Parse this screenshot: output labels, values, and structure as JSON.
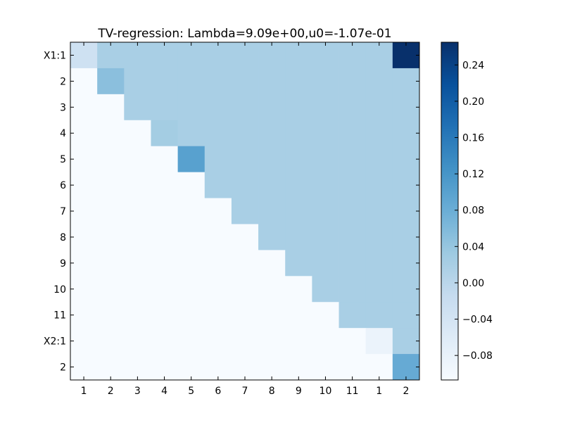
{
  "chart_data": {
    "type": "heatmap",
    "title": "TV-regression: Lambda=9.09e+00,u0=-1.07e-01",
    "x_tick_labels": [
      "1",
      "2",
      "3",
      "4",
      "5",
      "6",
      "7",
      "8",
      "9",
      "10",
      "11",
      "1",
      "2"
    ],
    "y_tick_labels": [
      "X1:1",
      "2",
      "3",
      "4",
      "5",
      "6",
      "7",
      "8",
      "9",
      "10",
      "11",
      "X2:1",
      "2"
    ],
    "values": [
      [
        -0.03,
        0.02,
        0.02,
        0.02,
        0.02,
        0.02,
        0.02,
        0.02,
        0.02,
        0.02,
        0.02,
        0.02,
        0.265
      ],
      [
        -0.107,
        0.05,
        0.02,
        0.02,
        0.02,
        0.02,
        0.02,
        0.02,
        0.02,
        0.02,
        0.02,
        0.02,
        0.02
      ],
      [
        -0.107,
        -0.107,
        0.02,
        0.02,
        0.02,
        0.02,
        0.02,
        0.02,
        0.02,
        0.02,
        0.02,
        0.02,
        0.02
      ],
      [
        -0.107,
        -0.107,
        -0.107,
        0.025,
        0.02,
        0.02,
        0.02,
        0.02,
        0.02,
        0.02,
        0.02,
        0.02,
        0.02
      ],
      [
        -0.107,
        -0.107,
        -0.107,
        -0.107,
        0.1,
        0.02,
        0.02,
        0.02,
        0.02,
        0.02,
        0.02,
        0.02,
        0.02
      ],
      [
        -0.107,
        -0.107,
        -0.107,
        -0.107,
        -0.107,
        0.02,
        0.02,
        0.02,
        0.02,
        0.02,
        0.02,
        0.02,
        0.02
      ],
      [
        -0.107,
        -0.107,
        -0.107,
        -0.107,
        -0.107,
        -0.107,
        0.02,
        0.02,
        0.02,
        0.02,
        0.02,
        0.02,
        0.02
      ],
      [
        -0.107,
        -0.107,
        -0.107,
        -0.107,
        -0.107,
        -0.107,
        -0.107,
        0.02,
        0.02,
        0.02,
        0.02,
        0.02,
        0.02
      ],
      [
        -0.107,
        -0.107,
        -0.107,
        -0.107,
        -0.107,
        -0.107,
        -0.107,
        -0.107,
        0.02,
        0.02,
        0.02,
        0.02,
        0.02
      ],
      [
        -0.107,
        -0.107,
        -0.107,
        -0.107,
        -0.107,
        -0.107,
        -0.107,
        -0.107,
        -0.107,
        0.02,
        0.02,
        0.02,
        0.02
      ],
      [
        -0.107,
        -0.107,
        -0.107,
        -0.107,
        -0.107,
        -0.107,
        -0.107,
        -0.107,
        -0.107,
        -0.107,
        0.02,
        0.02,
        0.02
      ],
      [
        -0.107,
        -0.107,
        -0.107,
        -0.107,
        -0.107,
        -0.107,
        -0.107,
        -0.107,
        -0.107,
        -0.107,
        -0.107,
        -0.085,
        0.02
      ],
      [
        -0.107,
        -0.107,
        -0.107,
        -0.107,
        -0.107,
        -0.107,
        -0.107,
        -0.107,
        -0.107,
        -0.107,
        -0.107,
        -0.107,
        0.085
      ]
    ],
    "colorbar": {
      "range": [
        -0.107,
        0.265
      ],
      "ticks": [
        -0.08,
        -0.04,
        0.0,
        0.04,
        0.08,
        0.12,
        0.16,
        0.2,
        0.24
      ],
      "tick_labels": [
        "−0.08",
        "−0.04",
        "0.00",
        "0.04",
        "0.08",
        "0.12",
        "0.16",
        "0.20",
        "0.24"
      ]
    },
    "colormap": "Blues",
    "colormap_stops": [
      "#f7fbff",
      "#deebf7",
      "#c6dbef",
      "#9ecae1",
      "#6baed6",
      "#4292c6",
      "#2171b5",
      "#08519c",
      "#08306b"
    ],
    "grid": false
  }
}
